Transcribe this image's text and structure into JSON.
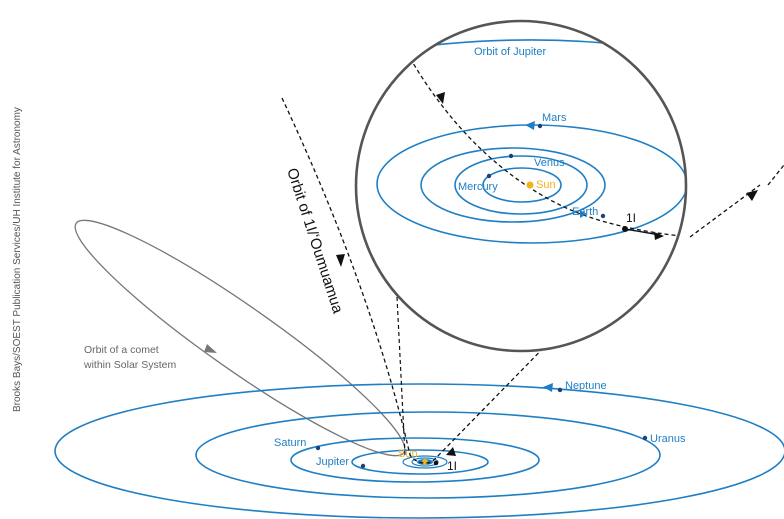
{
  "credit": "Brooks Bays/SOEST Publication Services/UH Institute for Astronomy",
  "trajectory_label": "Orbit of 1I/ʻOumuamua",
  "comet_label_line1": "Orbit of a comet",
  "comet_label_line2": "within Solar System",
  "outer_labels": {
    "neptune": "Neptune",
    "uranus": "Uranus",
    "saturn": "Saturn",
    "jupiter": "Jupiter",
    "sun": "Sun",
    "object": "1I"
  },
  "inset_labels": {
    "jupiter_orbit": "Orbit of Jupiter",
    "mars": "Mars",
    "venus": "Venus",
    "mercury": "Mercury",
    "sun": "Sun",
    "earth": "Earth",
    "object": "1I"
  },
  "colors": {
    "orbit_blue": "#1f7fc4",
    "sun_yellow": "#f2b21a",
    "inset_ring": "#555555",
    "comet_gray": "#777777"
  }
}
